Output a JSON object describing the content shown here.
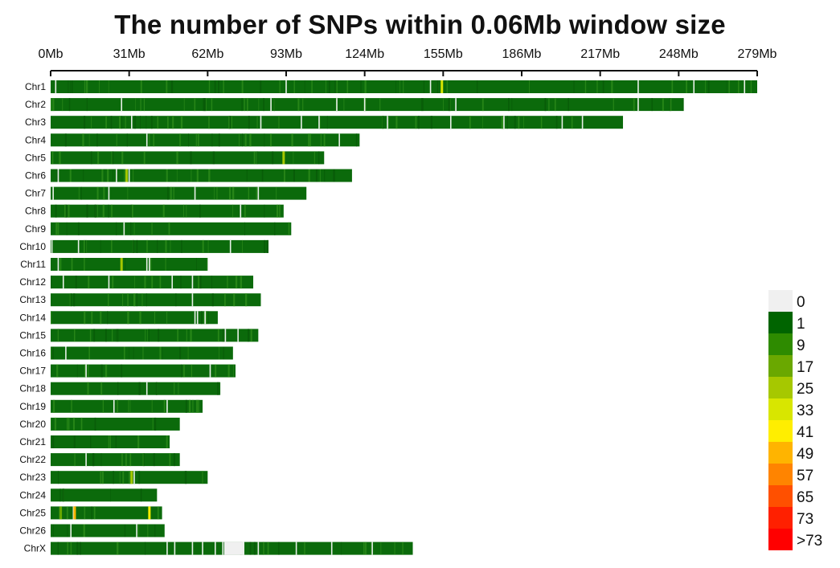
{
  "chart_data": {
    "type": "heatmap",
    "title": "The number of SNPs within 0.06Mb window size",
    "x_ticks": [
      "0Mb",
      "31Mb",
      "62Mb",
      "93Mb",
      "124Mb",
      "155Mb",
      "186Mb",
      "217Mb",
      "248Mb",
      "279Mb"
    ],
    "x_range_mb": [
      0,
      279
    ],
    "window_size_mb": 0.06,
    "chromosomes": [
      {
        "name": "Chr1",
        "length_mb": 279,
        "gaps_mb": [
          2,
          93,
          150,
          232,
          254,
          274
        ],
        "hotspots": [
          {
            "pos_mb": 154.5,
            "bin": ">=33"
          }
        ]
      },
      {
        "name": "Chr2",
        "length_mb": 250,
        "gaps_mb": [
          28,
          87,
          113,
          124,
          160,
          232
        ]
      },
      {
        "name": "Chr3",
        "length_mb": 226,
        "gaps_mb": [
          32,
          83,
          99,
          106,
          133,
          158,
          179,
          202,
          210
        ]
      },
      {
        "name": "Chr4",
        "length_mb": 122,
        "gaps_mb": [
          38,
          114
        ]
      },
      {
        "name": "Chr5",
        "length_mb": 108,
        "gaps_mb": [
          92
        ],
        "hotspots": [
          {
            "pos_mb": 92,
            "bin": ">=25"
          }
        ]
      },
      {
        "name": "Chr6",
        "length_mb": 119,
        "gaps_mb": [
          3,
          26,
          31
        ],
        "hotspots": [
          {
            "pos_mb": 30,
            "bin": ">=25"
          }
        ]
      },
      {
        "name": "Chr7",
        "length_mb": 101,
        "gaps_mb": [
          1,
          23,
          57,
          82
        ]
      },
      {
        "name": "Chr8",
        "length_mb": 92,
        "gaps_mb": [
          75
        ]
      },
      {
        "name": "Chr9",
        "length_mb": 95,
        "gaps_mb": [
          29
        ]
      },
      {
        "name": "Chr10",
        "length_mb": 86,
        "gaps_mb": [
          0.5,
          11,
          71
        ]
      },
      {
        "name": "Chr11",
        "length_mb": 62,
        "gaps_mb": [
          3,
          38,
          39
        ],
        "hotspots": [
          {
            "pos_mb": 28,
            "bin": ">=25"
          }
        ]
      },
      {
        "name": "Chr12",
        "length_mb": 80,
        "gaps_mb": [
          5,
          23,
          48,
          56
        ]
      },
      {
        "name": "Chr13",
        "length_mb": 83,
        "gaps_mb": [
          56
        ]
      },
      {
        "name": "Chr14",
        "length_mb": 66,
        "gaps_mb": [
          57,
          58,
          61
        ]
      },
      {
        "name": "Chr15",
        "length_mb": 82,
        "gaps_mb": [
          69,
          74
        ]
      },
      {
        "name": "Chr16",
        "length_mb": 72,
        "gaps_mb": [
          6
        ]
      },
      {
        "name": "Chr17",
        "length_mb": 73,
        "gaps_mb": [
          14,
          63
        ]
      },
      {
        "name": "Chr18",
        "length_mb": 67,
        "gaps_mb": [
          38
        ]
      },
      {
        "name": "Chr19",
        "length_mb": 60,
        "gaps_mb": [
          25,
          46
        ]
      },
      {
        "name": "Chr20",
        "length_mb": 51,
        "gaps_mb": []
      },
      {
        "name": "Chr21",
        "length_mb": 47,
        "gaps_mb": []
      },
      {
        "name": "Chr22",
        "length_mb": 51,
        "gaps_mb": [
          14
        ]
      },
      {
        "name": "Chr23",
        "length_mb": 62,
        "gaps_mb": [
          33
        ],
        "hotspots": [
          {
            "pos_mb": 32,
            "bin": ">=25"
          }
        ]
      },
      {
        "name": "Chr24",
        "length_mb": 42,
        "gaps_mb": []
      },
      {
        "name": "Chr25",
        "length_mb": 44,
        "gaps_mb": [
          9
        ],
        "hotspots": [
          {
            "pos_mb": 4,
            "bin": ">=17"
          },
          {
            "pos_mb": 9.5,
            "bin": ">=49"
          },
          {
            "pos_mb": 39,
            "bin": ">=41"
          }
        ]
      },
      {
        "name": "Chr26",
        "length_mb": 45,
        "gaps_mb": [
          8,
          34
        ]
      },
      {
        "name": "ChrX",
        "length_mb": 143,
        "gaps_mb": [
          46,
          49,
          56,
          60,
          65,
          68,
          76,
          82,
          97,
          111,
          127
        ],
        "empty_blocks_mb": [
          [
            68.5,
            76.5
          ]
        ]
      }
    ],
    "legend": {
      "labels": [
        "0",
        "1",
        "9",
        "17",
        "25",
        "33",
        "41",
        "49",
        "57",
        "65",
        "73",
        ">73"
      ],
      "colors": [
        "#f0f0f0",
        "#006400",
        "#2e8b00",
        "#6aa800",
        "#a6c800",
        "#d8e600",
        "#ffee00",
        "#ffb400",
        "#ff8400",
        "#ff5000",
        "#ff2000",
        "#ff0000"
      ],
      "placement": "right"
    },
    "grid": false
  },
  "colors": {
    "bar_base": "#0b6a0b",
    "bar_dark": "#085a08",
    "bar_light": "#2b8a1a",
    "gap": "#e8f0e8"
  }
}
